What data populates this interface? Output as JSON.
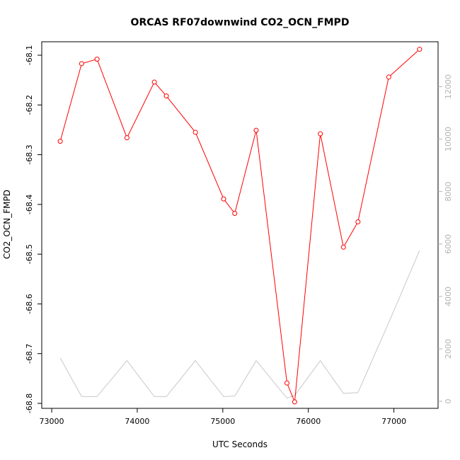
{
  "chart_data": {
    "type": "line",
    "title": "ORCAS RF07downwind CO2_OCN_FMPD",
    "xlabel": "UTC Seconds",
    "ylabel": "CO2_OCN_FMPD",
    "xlim": [
      72950,
      77450
    ],
    "ylim": [
      -68.8,
      -68.1
    ],
    "y2lim": [
      -80,
      13200
    ],
    "x_ticks": [
      "73000",
      "74000",
      "75000",
      "76000",
      "77000"
    ],
    "y_ticks": [
      "-68.8",
      "-68.7",
      "-68.6",
      "-68.5",
      "-68.4",
      "-68.3",
      "-68.2",
      "-68.1"
    ],
    "y2_ticks": [
      "0",
      "2000",
      "4000",
      "6000",
      "8000",
      "10000",
      "12000"
    ],
    "series": [
      {
        "color": "#ff0000",
        "axis": "left",
        "markers": "open-circle",
        "x": [
          73100,
          73350,
          73530,
          73880,
          74200,
          74340,
          74680,
          75010,
          75140,
          75390,
          75750,
          75840,
          76140,
          76410,
          76580,
          76940,
          77300
        ],
        "y": [
          -68.273,
          -68.117,
          -68.108,
          -68.266,
          -68.154,
          -68.182,
          -68.255,
          -68.389,
          -68.418,
          -68.251,
          -68.759,
          -68.797,
          -68.258,
          -68.486,
          -68.435,
          -68.144,
          -68.088
        ]
      },
      {
        "color": "#c8c8c8",
        "axis": "right",
        "markers": "none",
        "x": [
          73100,
          73350,
          73530,
          73880,
          74200,
          74340,
          74680,
          75010,
          75140,
          75390,
          75750,
          75840,
          76140,
          76410,
          76580,
          76940,
          77300
        ],
        "y": [
          1650,
          180,
          180,
          1550,
          180,
          180,
          1550,
          180,
          200,
          1550,
          120,
          220,
          1550,
          300,
          330,
          3000,
          5750
        ]
      }
    ]
  }
}
